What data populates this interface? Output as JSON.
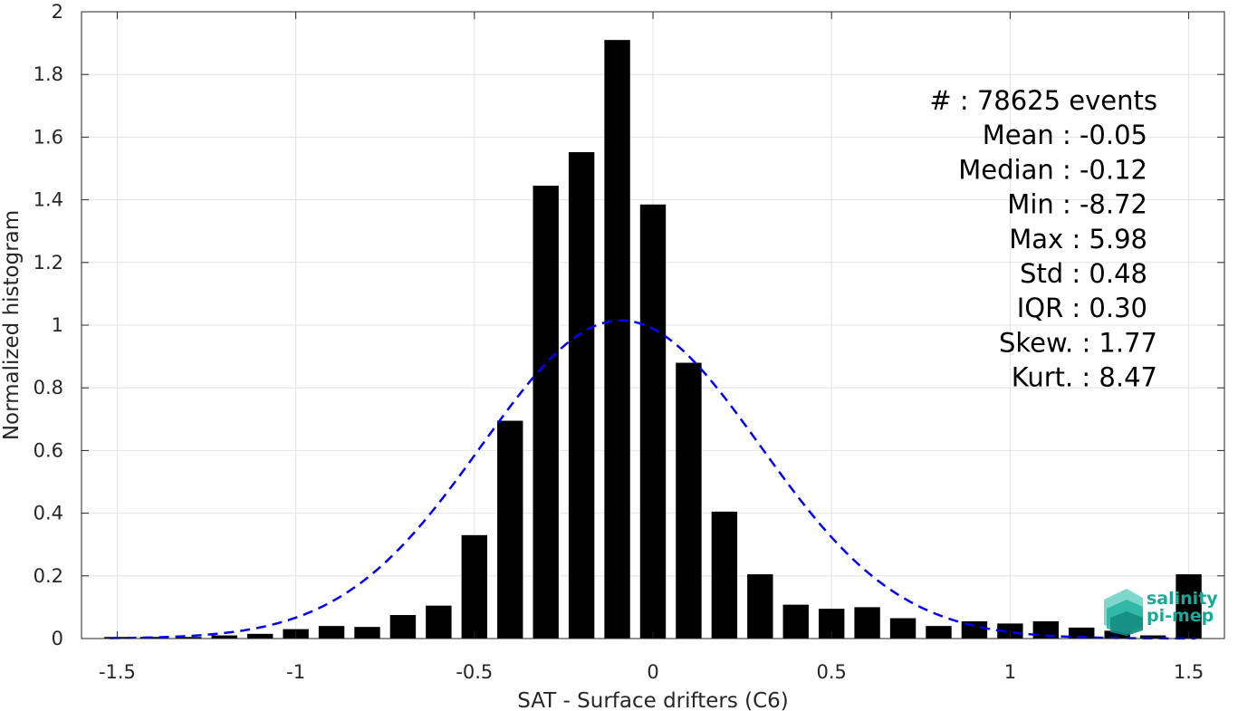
{
  "chart_data": {
    "type": "bar",
    "xlabel": "SAT - Surface drifters (C6)",
    "ylabel": "Normalized histogram",
    "xlim": [
      -1.6,
      1.6
    ],
    "ylim": [
      0,
      2
    ],
    "x_ticks": [
      "-1.5",
      "-1",
      "-0.5",
      "0",
      "0.5",
      "1",
      "1.5"
    ],
    "y_ticks": [
      "0",
      "0.2",
      "0.4",
      "0.6",
      "0.8",
      "1",
      "1.2",
      "1.4",
      "1.6",
      "1.8",
      "2"
    ],
    "grid": true,
    "bar_color": "#000000",
    "bin_width": 0.1,
    "x": [
      -1.5,
      -1.4,
      -1.3,
      -1.2,
      -1.1,
      -1.0,
      -0.9,
      -0.8,
      -0.7,
      -0.6,
      -0.5,
      -0.4,
      -0.3,
      -0.2,
      -0.1,
      0.0,
      0.1,
      0.2,
      0.3,
      0.4,
      0.5,
      0.6,
      0.7,
      0.8,
      0.9,
      1.0,
      1.1,
      1.2,
      1.3,
      1.4,
      1.5
    ],
    "values": [
      0.005,
      0.005,
      0.005,
      0.01,
      0.015,
      0.03,
      0.04,
      0.037,
      0.075,
      0.105,
      0.33,
      0.695,
      1.445,
      1.552,
      1.91,
      1.385,
      0.88,
      0.405,
      0.205,
      0.108,
      0.095,
      0.1,
      0.065,
      0.04,
      0.055,
      0.048,
      0.055,
      0.035,
      0.025,
      0.01,
      0.205
    ],
    "fit": {
      "type": "gaussian",
      "mean": -0.09,
      "std": 0.39,
      "peak": 1.015,
      "color": "#0000ff",
      "style": "dashed"
    },
    "annotations": [
      "#  : 78625 events",
      "Mean : -0.05",
      "Median : -0.12",
      "Min : -8.72",
      "Max : 5.98",
      "Std : 0.48",
      "IQR : 0.30",
      "Skew. : 1.77",
      "Kurt. : 8.47"
    ]
  },
  "logo": {
    "line1": "salinity",
    "line2": "pi-mep",
    "color": "#1aa89a"
  }
}
